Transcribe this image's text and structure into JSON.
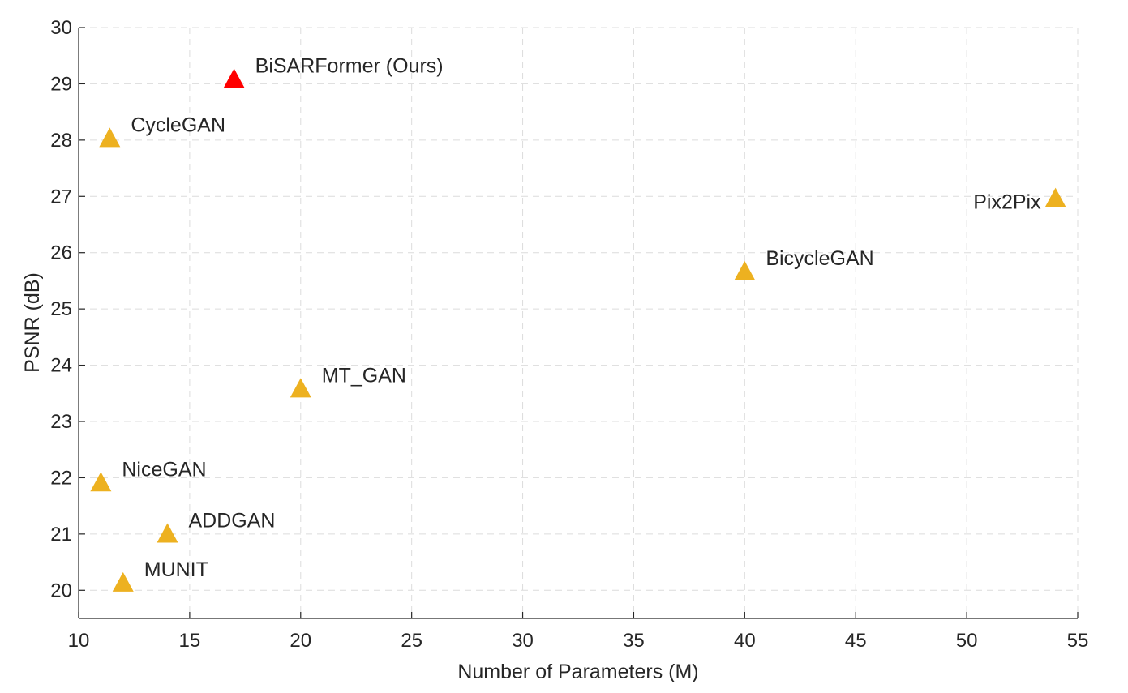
{
  "chart_data": {
    "type": "scatter",
    "title": "",
    "xlabel": "Number of Parameters (M)",
    "ylabel": "PSNR (dB)",
    "xlim": [
      10,
      55
    ],
    "ylim": [
      19.5,
      30
    ],
    "xticks": [
      10,
      15,
      20,
      25,
      30,
      35,
      40,
      45,
      50,
      55
    ],
    "yticks": [
      20,
      21,
      22,
      23,
      24,
      25,
      26,
      27,
      28,
      29,
      30
    ],
    "grid": true,
    "marker": "triangle",
    "colors": {
      "default": "#EDB120",
      "highlight": "#FF0000"
    },
    "points": [
      {
        "label": "BiSARFormer (Ours)",
        "x": 17,
        "y": 29.1,
        "highlight": true,
        "label_side": "right"
      },
      {
        "label": "CycleGAN",
        "x": 11.4,
        "y": 28.05,
        "highlight": false,
        "label_side": "right"
      },
      {
        "label": "Pix2Pix",
        "x": 54,
        "y": 26.98,
        "highlight": false,
        "label_side": "left"
      },
      {
        "label": "BicycleGAN",
        "x": 40,
        "y": 25.68,
        "highlight": false,
        "label_side": "right"
      },
      {
        "label": "MT_GAN",
        "x": 20,
        "y": 23.6,
        "highlight": false,
        "label_side": "right"
      },
      {
        "label": "NiceGAN",
        "x": 11,
        "y": 21.93,
        "highlight": false,
        "label_side": "right"
      },
      {
        "label": "ADDGAN",
        "x": 14,
        "y": 21.02,
        "highlight": false,
        "label_side": "right"
      },
      {
        "label": "MUNIT",
        "x": 12,
        "y": 20.15,
        "highlight": false,
        "label_side": "right"
      }
    ]
  }
}
